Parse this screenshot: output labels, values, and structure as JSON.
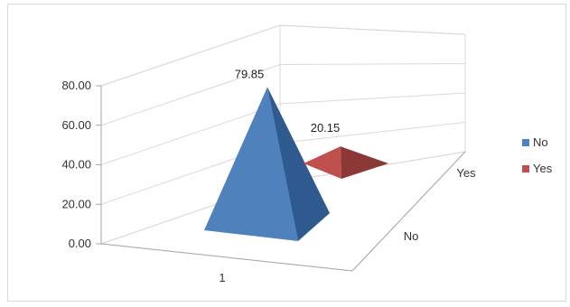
{
  "chart_data": {
    "type": "bar",
    "subtype": "3d-pyramid",
    "title": "",
    "xlabel": "",
    "ylabel": "",
    "categories": [
      "1"
    ],
    "depth_categories": [
      "No",
      "Yes"
    ],
    "series": [
      {
        "name": "No",
        "values": [
          79.85
        ],
        "color": "#4f81bd",
        "data_label": "79.85"
      },
      {
        "name": "Yes",
        "values": [
          20.15
        ],
        "color": "#c0504d",
        "data_label": "20.15"
      }
    ],
    "ylim": [
      0,
      80
    ],
    "yticks": [
      "0.00",
      "20.00",
      "40.00",
      "60.00",
      "80.00"
    ],
    "grid": true,
    "legend": {
      "placement": "right",
      "entries": [
        "No",
        "Yes"
      ]
    }
  }
}
